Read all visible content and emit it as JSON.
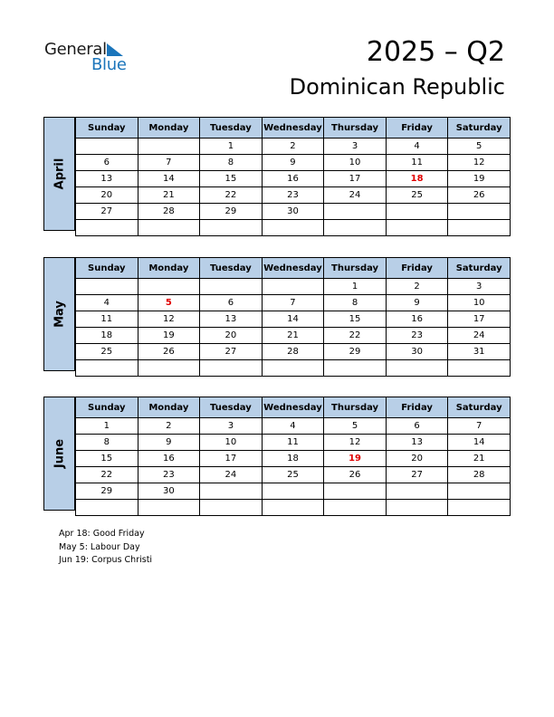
{
  "logo": {
    "word1": "General",
    "word2": "Blue"
  },
  "title": "2025 – Q2",
  "country": "Dominican Republic",
  "weekdays": [
    "Sunday",
    "Monday",
    "Tuesday",
    "Wednesday",
    "Thursday",
    "Friday",
    "Saturday"
  ],
  "months": [
    {
      "name": "April",
      "rows": [
        [
          "",
          "",
          "1",
          "2",
          "3",
          "4",
          "5"
        ],
        [
          "6",
          "7",
          "8",
          "9",
          "10",
          "11",
          "12"
        ],
        [
          "13",
          "14",
          "15",
          "16",
          "17",
          "18",
          "19"
        ],
        [
          "20",
          "21",
          "22",
          "23",
          "24",
          "25",
          "26"
        ],
        [
          "27",
          "28",
          "29",
          "30",
          "",
          "",
          ""
        ],
        [
          "",
          "",
          "",
          "",
          "",
          "",
          ""
        ]
      ],
      "holidays": [
        "18"
      ]
    },
    {
      "name": "May",
      "rows": [
        [
          "",
          "",
          "",
          "",
          "1",
          "2",
          "3"
        ],
        [
          "4",
          "5",
          "6",
          "7",
          "8",
          "9",
          "10"
        ],
        [
          "11",
          "12",
          "13",
          "14",
          "15",
          "16",
          "17"
        ],
        [
          "18",
          "19",
          "20",
          "21",
          "22",
          "23",
          "24"
        ],
        [
          "25",
          "26",
          "27",
          "28",
          "29",
          "30",
          "31"
        ],
        [
          "",
          "",
          "",
          "",
          "",
          "",
          ""
        ]
      ],
      "holidays": [
        "5"
      ]
    },
    {
      "name": "June",
      "rows": [
        [
          "1",
          "2",
          "3",
          "4",
          "5",
          "6",
          "7"
        ],
        [
          "8",
          "9",
          "10",
          "11",
          "12",
          "13",
          "14"
        ],
        [
          "15",
          "16",
          "17",
          "18",
          "19",
          "20",
          "21"
        ],
        [
          "22",
          "23",
          "24",
          "25",
          "26",
          "27",
          "28"
        ],
        [
          "29",
          "30",
          "",
          "",
          "",
          "",
          ""
        ],
        [
          "",
          "",
          "",
          "",
          "",
          "",
          ""
        ]
      ],
      "holidays": [
        "19"
      ]
    }
  ],
  "notes": [
    "Apr 18: Good Friday",
    "May 5: Labour Day",
    "Jun 19: Corpus Christi"
  ],
  "colors": {
    "header_bg": "#b8cfe7",
    "holiday": "#e00000",
    "brand_blue": "#1b75bb"
  }
}
